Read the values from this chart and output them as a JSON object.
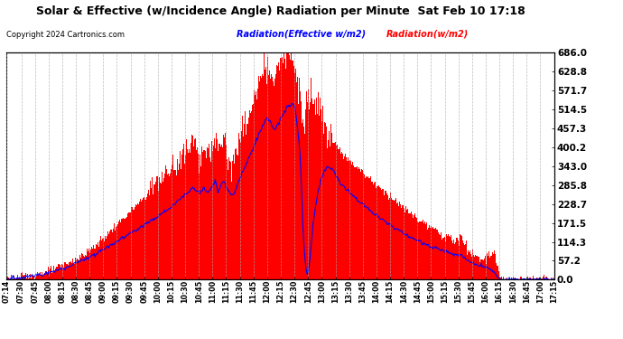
{
  "title": "Solar & Effective (w/Incidence Angle) Radiation per Minute  Sat Feb 10 17:18",
  "copyright": "Copyright 2024 Cartronics.com",
  "legend_effective": "Radiation(Effective w/m2)",
  "legend_solar": "Radiation(w/m2)",
  "ymin": 0.0,
  "ymax": 686.0,
  "yticks": [
    0.0,
    57.2,
    114.3,
    171.5,
    228.7,
    285.8,
    343.0,
    400.2,
    457.3,
    514.5,
    571.7,
    628.8,
    686.0
  ],
  "bg_color": "#ffffff",
  "plot_bg_color": "#ffffff",
  "grid_color": "#aaaaaa",
  "fill_color": "#ff0000",
  "line_color": "#0000ff",
  "title_color": "#000000",
  "copyright_color": "#000000",
  "legend_effective_color": "#0000ff",
  "legend_solar_color": "#ff0000",
  "time_start_minutes": 434,
  "time_end_minutes": 1035,
  "xtick_labels": [
    "07:14",
    "07:30",
    "07:45",
    "08:00",
    "08:15",
    "08:30",
    "08:45",
    "09:00",
    "09:15",
    "09:30",
    "09:45",
    "10:00",
    "10:15",
    "10:30",
    "10:45",
    "11:00",
    "11:15",
    "11:30",
    "11:45",
    "12:00",
    "12:15",
    "12:30",
    "12:45",
    "13:00",
    "13:15",
    "13:30",
    "13:45",
    "14:00",
    "14:15",
    "14:30",
    "14:45",
    "15:00",
    "15:15",
    "15:30",
    "15:45",
    "16:00",
    "16:15",
    "16:30",
    "16:45",
    "17:00",
    "17:15"
  ],
  "xtick_positions_minutes": [
    434,
    450,
    465,
    480,
    495,
    510,
    525,
    540,
    555,
    570,
    585,
    600,
    615,
    630,
    645,
    660,
    675,
    690,
    705,
    720,
    735,
    750,
    765,
    780,
    795,
    810,
    825,
    840,
    855,
    870,
    885,
    900,
    915,
    930,
    945,
    960,
    975,
    990,
    1005,
    1020,
    1035
  ]
}
